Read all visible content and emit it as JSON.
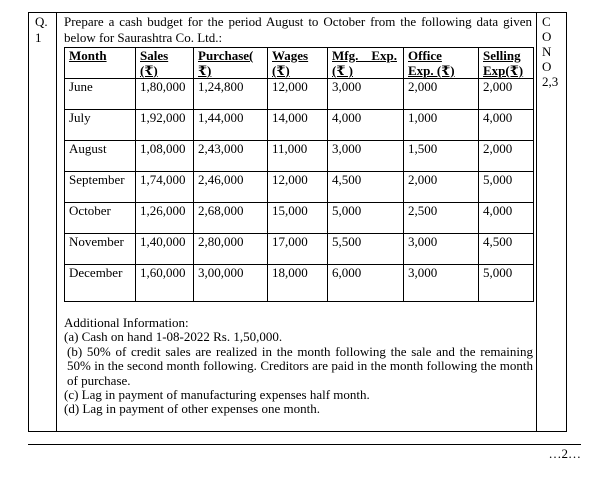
{
  "page": {
    "question_label": "Q.\n1",
    "co_label": "C\nO\nN\nO\n2,3",
    "intro": "Prepare a cash budget for the period August to October from the following data given below for Saurashtra Co. Ltd.:",
    "page_number": "…2…"
  },
  "chart_data": {
    "type": "table",
    "title": "Cash budget source data for Saurashtra Co. Ltd.",
    "columns": [
      "Month",
      "Sales (₹)",
      "Purchase(₹)",
      "Wages (₹)",
      "Mfg. Exp. (₹)",
      "Office Exp. (₹)",
      "Selling Exp(₹)"
    ],
    "rows": [
      [
        "June",
        "1,80,000",
        "1,24,800",
        "12,000",
        "3,000",
        "2,000",
        "2,000"
      ],
      [
        "July",
        "1,92,000",
        "1,44,000",
        "14,000",
        "4,000",
        "1,000",
        "4,000"
      ],
      [
        "August",
        "1,08,000",
        "2,43,000",
        "11,000",
        "3,000",
        "1,500",
        "2,000"
      ],
      [
        "September",
        "1,74,000",
        "2,46,000",
        "12,000",
        "4,500",
        "2,000",
        "5,000"
      ],
      [
        "October",
        "1,26,000",
        "2,68,000",
        "15,000",
        "5,000",
        "2,500",
        "4,000"
      ],
      [
        "November",
        "1,40,000",
        "2,80,000",
        "17,000",
        "5,500",
        "3,000",
        "4,500"
      ],
      [
        "December",
        "1,60,000",
        "3,00,000",
        "18,000",
        "6,000",
        "3,000",
        "5,000"
      ]
    ]
  },
  "table": {
    "headers": [
      "Month",
      "Sales\n(₹)",
      "Purchase(\n₹)",
      "Wages\n(₹)",
      "Mfg.    Exp.\n(₹ )",
      "Office\nExp. (₹)",
      "Selling\nExp(₹)"
    ],
    "rows": [
      [
        "June",
        "1,80,000",
        "1,24,800",
        "12,000",
        "3,000",
        "2,000",
        "2,000"
      ],
      [
        "July",
        "1,92,000",
        "1,44,000",
        "14,000",
        "4,000",
        "1,000",
        "4,000"
      ],
      [
        "August",
        "1,08,000",
        "2,43,000",
        "11,000",
        "3,000",
        "1,500",
        "2,000"
      ],
      [
        "September",
        "1,74,000",
        "2,46,000",
        "12,000",
        "4,500",
        "2,000",
        "5,000"
      ],
      [
        "October",
        "1,26,000",
        "2,68,000",
        "15,000",
        "5,000",
        "2,500",
        "4,000"
      ],
      [
        "November",
        "1,40,000",
        "2,80,000",
        "17,000",
        "5,500",
        "3,000",
        "4,500"
      ],
      [
        "December",
        "1,60,000",
        "3,00,000",
        "18,000",
        "6,000",
        "3,000",
        "5,000"
      ]
    ]
  },
  "additional": {
    "title": "Additional Information:",
    "items": [
      "(a) Cash on hand 1-08-2022 Rs. 1,50,000.",
      "(b) 50% of credit sales are realized in the month following the sale and the remaining 50% in the second month following. Creditors are paid in the month following the month of purchase.",
      "(c) Lag in payment of manufacturing expenses half month.",
      "(d) Lag in payment of other expenses one month."
    ]
  }
}
